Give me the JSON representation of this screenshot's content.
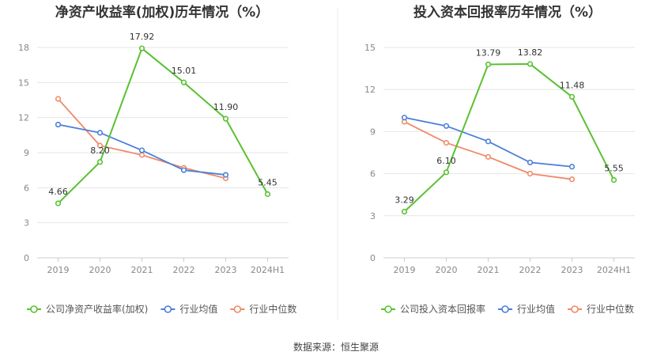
{
  "source_note": "数据来源：恒生聚源",
  "chart_data": [
    {
      "type": "line",
      "title": "净资产收益率(加权)历年情况（%）",
      "categories": [
        "2019",
        "2020",
        "2021",
        "2022",
        "2023",
        "2024H1"
      ],
      "ylim": [
        0,
        18
      ],
      "yticks": [
        0,
        3,
        6,
        9,
        12,
        15,
        18
      ],
      "grid": true,
      "legend_position": "bottom-left",
      "series": [
        {
          "name": "公司净资产收益率(加权)",
          "color": "#5ac132",
          "values": [
            4.66,
            8.2,
            17.92,
            15.01,
            11.9,
            5.45
          ],
          "labels": [
            "4.66",
            "8.20",
            "17.92",
            "15.01",
            "11.90",
            "5.45"
          ]
        },
        {
          "name": "行业均值",
          "color": "#4a7fd9",
          "values": [
            11.4,
            10.7,
            9.2,
            7.5,
            7.1,
            null
          ]
        },
        {
          "name": "行业中位数",
          "color": "#f0896a",
          "values": [
            13.6,
            9.6,
            8.8,
            7.7,
            6.8,
            null
          ]
        }
      ]
    },
    {
      "type": "line",
      "title": "投入资本回报率历年情况（%）",
      "categories": [
        "2019",
        "2020",
        "2021",
        "2022",
        "2023",
        "2024H1"
      ],
      "ylim": [
        0,
        15
      ],
      "yticks": [
        0,
        3,
        6,
        9,
        12,
        15
      ],
      "grid": true,
      "legend_position": "bottom-left",
      "series": [
        {
          "name": "公司投入资本回报率",
          "color": "#5ac132",
          "values": [
            3.29,
            6.1,
            13.79,
            13.82,
            11.48,
            5.55
          ],
          "labels": [
            "3.29",
            "6.10",
            "13.79",
            "13.82",
            "11.48",
            "5.55"
          ]
        },
        {
          "name": "行业均值",
          "color": "#4a7fd9",
          "values": [
            10.0,
            9.4,
            8.3,
            6.8,
            6.5,
            null
          ]
        },
        {
          "name": "行业中位数",
          "color": "#f0896a",
          "values": [
            9.7,
            8.2,
            7.2,
            6.0,
            5.6,
            null
          ]
        }
      ]
    }
  ]
}
